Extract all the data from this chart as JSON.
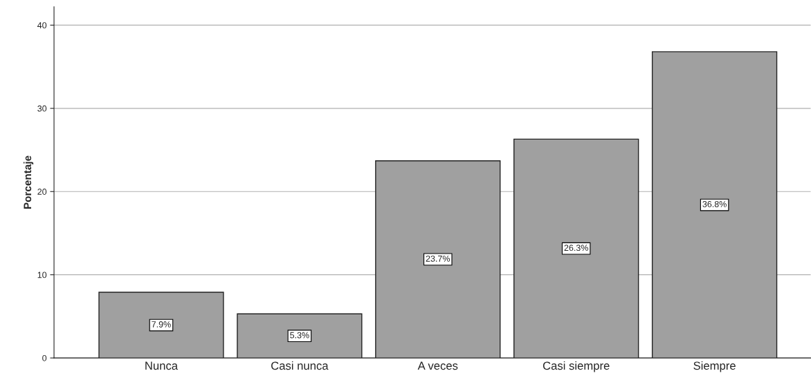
{
  "chart_data": {
    "type": "bar",
    "ylabel": "Porcentaje",
    "categories": [
      "Nunca",
      "Casi nunca",
      "A veces",
      "Casi siempre",
      "Siempre"
    ],
    "values": [
      7.9,
      5.3,
      23.7,
      26.3,
      36.8
    ],
    "value_labels": [
      "7.9%",
      "5.3%",
      "23.7%",
      "26.3%",
      "36.8%"
    ],
    "color": "#a0a0a0",
    "ylim": [
      0,
      42.2
    ],
    "yticks": [
      0,
      10,
      20,
      30,
      40
    ],
    "grid": "y",
    "legend": false
  }
}
